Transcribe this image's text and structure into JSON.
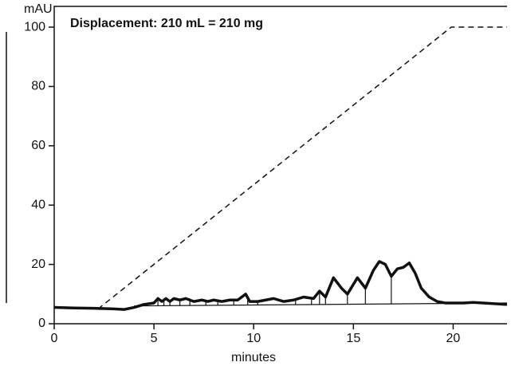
{
  "chart_data": {
    "type": "line",
    "title": "Displacement: 210 mL = 210 mg",
    "x_label": "minutes",
    "y_label": "mAU",
    "xlim": [
      0,
      22.7
    ],
    "ylim": [
      0,
      107
    ],
    "xticks": [
      0,
      5,
      10,
      15,
      20
    ],
    "yticks": [
      0,
      20,
      40,
      60,
      80,
      100
    ],
    "series": [
      {
        "name": "signal",
        "color": "#111111",
        "style": "solid",
        "x": [
          0,
          1,
          2,
          3,
          3.5,
          4,
          4.5,
          5,
          5.2,
          5.4,
          5.6,
          5.8,
          6.0,
          6.3,
          6.6,
          7,
          7.4,
          7.7,
          8,
          8.4,
          8.8,
          9.2,
          9.6,
          9.8,
          10.2,
          10.6,
          11,
          11.5,
          12,
          12.5,
          13,
          13.3,
          13.6,
          14,
          14.4,
          14.7,
          15.2,
          15.6,
          16,
          16.3,
          16.6,
          16.9,
          17.2,
          17.5,
          17.8,
          18.1,
          18.4,
          18.8,
          19.2,
          19.6,
          20.5,
          21,
          22,
          22.7
        ],
        "values": [
          5.5,
          5.3,
          5.2,
          5.0,
          4.8,
          5.5,
          6.5,
          7,
          8.5,
          7.5,
          8.5,
          7.5,
          8.5,
          8,
          8.5,
          7.5,
          8,
          7.5,
          8,
          7.5,
          8,
          8,
          10,
          7.5,
          7.5,
          8,
          8.5,
          7.5,
          8,
          9,
          8.5,
          11,
          9,
          15.5,
          12,
          10,
          15.5,
          12,
          18,
          21,
          20,
          16,
          18.5,
          19,
          20.5,
          17,
          12,
          9,
          7.5,
          7,
          7,
          7.2,
          6.8,
          6.5
        ]
      },
      {
        "name": "gradient",
        "color": "#111111",
        "style": "dashed",
        "x": [
          2.2,
          19.9,
          22.7
        ],
        "values": [
          5,
          100,
          100
        ]
      },
      {
        "name": "baseline",
        "color": "#111111",
        "style": "thin",
        "x": [
          4,
          22.7
        ],
        "values": [
          6,
          7
        ]
      }
    ],
    "drop_lines": {
      "x": [
        5.2,
        5.5,
        5.8,
        6.3,
        6.8,
        7.6,
        8.2,
        9.0,
        9.7,
        10.2,
        12.1,
        12.9,
        13.3,
        13.6,
        14.7,
        15.6,
        16.9
      ],
      "values": [
        8.5,
        8,
        8,
        8,
        8,
        7.7,
        7.8,
        8,
        8,
        7.5,
        7.9,
        8.8,
        11,
        9,
        10,
        12,
        16
      ]
    }
  }
}
